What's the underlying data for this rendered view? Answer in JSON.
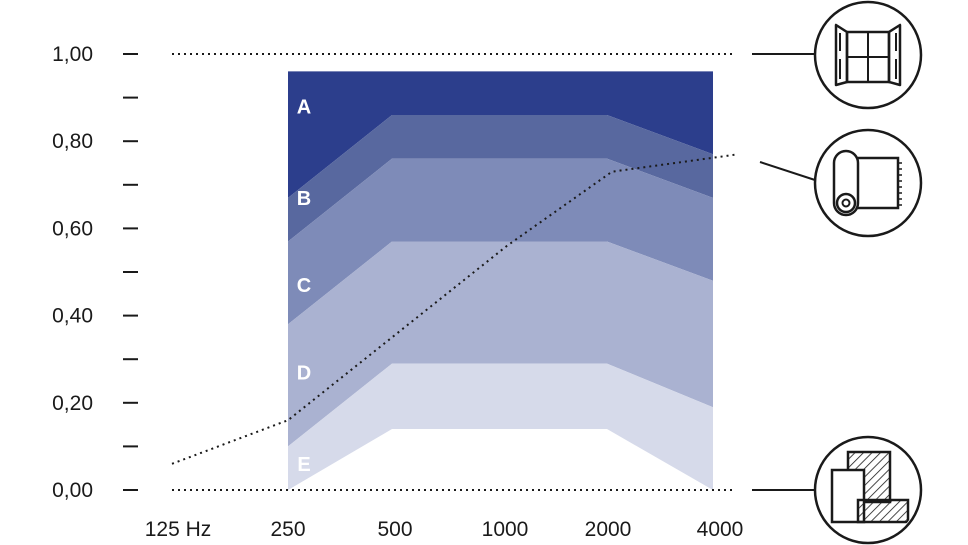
{
  "chart_data": {
    "type": "area",
    "x_categories": [
      "125 Hz",
      "250",
      "500",
      "1000",
      "2000",
      "4000"
    ],
    "band_x_categories": [
      "250",
      "500",
      "2000",
      "4000"
    ],
    "y_tick_labels": [
      "1,00",
      "0,80",
      "0,60",
      "0,40",
      "0,20",
      "0,00"
    ],
    "ylim": [
      0,
      1
    ],
    "reference_lines": [
      1.0,
      0.0
    ],
    "bands": [
      {
        "label": "A",
        "color": "#2c3e8c",
        "upper": [
          0.96,
          0.96,
          0.96,
          0.96
        ],
        "lower": [
          0.67,
          0.86,
          0.86,
          0.77
        ]
      },
      {
        "label": "B",
        "color": "#58689f",
        "upper": [
          0.67,
          0.86,
          0.86,
          0.77
        ],
        "lower": [
          0.57,
          0.76,
          0.76,
          0.67
        ]
      },
      {
        "label": "C",
        "color": "#7e8bb8",
        "upper": [
          0.57,
          0.76,
          0.76,
          0.67
        ],
        "lower": [
          0.38,
          0.57,
          0.57,
          0.48
        ]
      },
      {
        "label": "D",
        "color": "#aab2d1",
        "upper": [
          0.38,
          0.57,
          0.57,
          0.48
        ],
        "lower": [
          0.1,
          0.29,
          0.29,
          0.19
        ]
      },
      {
        "label": "E",
        "color": "#d6daea",
        "upper": [
          0.1,
          0.29,
          0.29,
          0.19
        ],
        "lower": [
          0.0,
          0.14,
          0.14,
          0.0
        ]
      }
    ],
    "dotted_series": {
      "x": [
        "125 Hz",
        "250",
        "1000",
        "2000",
        "4000"
      ],
      "values": [
        0.06,
        0.16,
        0.56,
        0.73,
        0.77
      ]
    },
    "icons": [
      "window-icon",
      "roll-material-icon",
      "solid-block-icon"
    ]
  }
}
